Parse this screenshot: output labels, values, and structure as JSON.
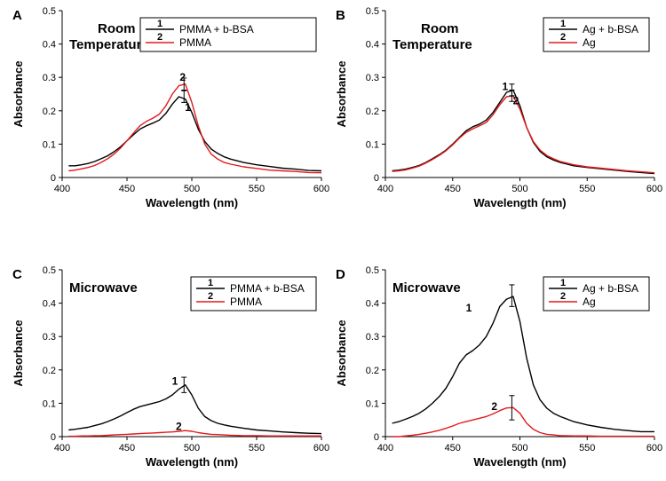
{
  "chart_data": [
    {
      "panel_label": "A",
      "type": "line",
      "title": "Room\nTemperature",
      "xlabel": "Wavelength (nm)",
      "ylabel": "Absorbance",
      "xlim": [
        400,
        600
      ],
      "ylim": [
        0,
        0.5
      ],
      "xticks": [
        400,
        450,
        500,
        550,
        600
      ],
      "yticks": [
        0,
        0.1,
        0.2,
        0.3,
        0.4,
        0.5
      ],
      "grid": false,
      "legend": {
        "placement": "top-right",
        "entries": [
          {
            "mark": "1",
            "text": "PMMA + b-BSA"
          },
          {
            "mark": "2",
            "text": "PMMA"
          }
        ]
      },
      "series": [
        {
          "name": "PMMA + b-BSA",
          "label": "1",
          "color": "#000000",
          "x": [
            405,
            410,
            415,
            420,
            425,
            430,
            435,
            440,
            445,
            450,
            455,
            460,
            465,
            470,
            475,
            480,
            485,
            490,
            495,
            500,
            505,
            510,
            515,
            520,
            525,
            530,
            540,
            550,
            560,
            570,
            580,
            590,
            600
          ],
          "y": [
            0.035,
            0.035,
            0.038,
            0.042,
            0.048,
            0.056,
            0.065,
            0.077,
            0.092,
            0.11,
            0.128,
            0.145,
            0.155,
            0.163,
            0.172,
            0.192,
            0.22,
            0.242,
            0.235,
            0.195,
            0.145,
            0.108,
            0.085,
            0.072,
            0.062,
            0.055,
            0.045,
            0.038,
            0.033,
            0.028,
            0.025,
            0.021,
            0.02
          ]
        },
        {
          "name": "PMMA",
          "label": "2",
          "color": "#e31a1c",
          "x": [
            405,
            410,
            415,
            420,
            425,
            430,
            435,
            440,
            445,
            450,
            455,
            460,
            465,
            470,
            475,
            480,
            485,
            490,
            495,
            500,
            505,
            510,
            515,
            520,
            525,
            530,
            540,
            550,
            560,
            570,
            580,
            590,
            600
          ],
          "y": [
            0.02,
            0.022,
            0.026,
            0.03,
            0.036,
            0.045,
            0.056,
            0.07,
            0.088,
            0.11,
            0.133,
            0.155,
            0.168,
            0.178,
            0.19,
            0.215,
            0.25,
            0.275,
            0.28,
            0.225,
            0.155,
            0.1,
            0.07,
            0.055,
            0.045,
            0.04,
            0.032,
            0.027,
            0.022,
            0.02,
            0.018,
            0.015,
            0.014
          ]
        }
      ],
      "annotations": [
        {
          "text": "2",
          "x": 493,
          "y": 0.29
        },
        {
          "text": "1",
          "x": 497,
          "y": 0.2
        }
      ],
      "error_bars": [
        {
          "x": 494,
          "low": 0.225,
          "high": 0.26
        },
        {
          "x": 494,
          "low": 0.262,
          "high": 0.298
        }
      ]
    },
    {
      "panel_label": "B",
      "type": "line",
      "title": "Room\nTemperature",
      "xlabel": "Wavelength (nm)",
      "ylabel": "Absorbance",
      "xlim": [
        400,
        600
      ],
      "ylim": [
        0,
        0.5
      ],
      "xticks": [
        400,
        450,
        500,
        550,
        600
      ],
      "yticks": [
        0,
        0.1,
        0.2,
        0.3,
        0.4,
        0.5
      ],
      "grid": false,
      "legend": {
        "placement": "top-right",
        "entries": [
          {
            "mark": "1",
            "text": "Ag + b-BSA"
          },
          {
            "mark": "2",
            "text": "Ag"
          }
        ]
      },
      "series": [
        {
          "name": "Ag + b-BSA",
          "label": "1",
          "color": "#000000",
          "x": [
            405,
            410,
            415,
            420,
            425,
            430,
            435,
            440,
            445,
            450,
            455,
            460,
            465,
            470,
            475,
            480,
            485,
            490,
            495,
            500,
            505,
            510,
            515,
            520,
            525,
            530,
            540,
            550,
            560,
            570,
            580,
            590,
            600
          ],
          "y": [
            0.02,
            0.022,
            0.025,
            0.03,
            0.036,
            0.045,
            0.056,
            0.068,
            0.082,
            0.1,
            0.12,
            0.14,
            0.152,
            0.16,
            0.172,
            0.195,
            0.225,
            0.255,
            0.262,
            0.215,
            0.15,
            0.105,
            0.078,
            0.062,
            0.052,
            0.045,
            0.035,
            0.03,
            0.026,
            0.022,
            0.018,
            0.015,
            0.012
          ]
        },
        {
          "name": "Ag",
          "label": "2",
          "color": "#e31a1c",
          "x": [
            405,
            410,
            415,
            420,
            425,
            430,
            435,
            440,
            445,
            450,
            455,
            460,
            465,
            470,
            475,
            480,
            485,
            490,
            495,
            500,
            505,
            510,
            515,
            520,
            525,
            530,
            540,
            550,
            560,
            570,
            580,
            590,
            600
          ],
          "y": [
            0.018,
            0.02,
            0.023,
            0.028,
            0.034,
            0.043,
            0.054,
            0.066,
            0.08,
            0.098,
            0.118,
            0.135,
            0.146,
            0.155,
            0.165,
            0.188,
            0.218,
            0.242,
            0.245,
            0.205,
            0.15,
            0.108,
            0.082,
            0.066,
            0.056,
            0.048,
            0.038,
            0.032,
            0.028,
            0.024,
            0.02,
            0.017,
            0.014
          ]
        }
      ],
      "annotations": [
        {
          "text": "1",
          "x": 489,
          "y": 0.262
        },
        {
          "text": "2",
          "x": 497,
          "y": 0.22
        }
      ],
      "error_bars": [
        {
          "x": 494,
          "low": 0.245,
          "high": 0.28
        },
        {
          "x": 494,
          "low": 0.228,
          "high": 0.262
        }
      ]
    },
    {
      "panel_label": "C",
      "type": "line",
      "title": "Microwave",
      "xlabel": "Wavelength (nm)",
      "ylabel": "Absorbance",
      "xlim": [
        400,
        600
      ],
      "ylim": [
        0,
        0.5
      ],
      "xticks": [
        400,
        450,
        500,
        550,
        600
      ],
      "yticks": [
        0,
        0.1,
        0.2,
        0.3,
        0.4,
        0.5
      ],
      "grid": false,
      "legend": {
        "placement": "top-right",
        "entries": [
          {
            "mark": "1",
            "text": "PMMA + b-BSA"
          },
          {
            "mark": "2",
            "text": "PMMA"
          }
        ]
      },
      "series": [
        {
          "name": "PMMA + b-BSA",
          "label": "1",
          "color": "#000000",
          "x": [
            405,
            410,
            415,
            420,
            425,
            430,
            435,
            440,
            445,
            450,
            455,
            460,
            465,
            470,
            475,
            480,
            485,
            490,
            495,
            500,
            505,
            510,
            515,
            520,
            525,
            530,
            540,
            550,
            560,
            570,
            580,
            590,
            600
          ],
          "y": [
            0.02,
            0.022,
            0.025,
            0.028,
            0.033,
            0.038,
            0.045,
            0.053,
            0.062,
            0.072,
            0.082,
            0.09,
            0.095,
            0.1,
            0.105,
            0.113,
            0.125,
            0.142,
            0.155,
            0.125,
            0.085,
            0.06,
            0.048,
            0.04,
            0.035,
            0.031,
            0.025,
            0.02,
            0.017,
            0.014,
            0.012,
            0.01,
            0.009
          ]
        },
        {
          "name": "PMMA",
          "label": "2",
          "color": "#e31a1c",
          "x": [
            405,
            410,
            415,
            420,
            425,
            430,
            435,
            440,
            445,
            450,
            455,
            460,
            465,
            470,
            475,
            480,
            485,
            490,
            495,
            500,
            505,
            510,
            515,
            520,
            525,
            530,
            540,
            550,
            560,
            570,
            580,
            590,
            600
          ],
          "y": [
            0.001,
            0.001,
            0.002,
            0.002,
            0.003,
            0.003,
            0.004,
            0.005,
            0.006,
            0.007,
            0.008,
            0.009,
            0.01,
            0.011,
            0.012,
            0.013,
            0.014,
            0.016,
            0.018,
            0.016,
            0.012,
            0.009,
            0.007,
            0.006,
            0.005,
            0.004,
            0.003,
            0.003,
            0.002,
            0.002,
            0.002,
            0.002,
            0.002
          ]
        }
      ],
      "annotations": [
        {
          "text": "1",
          "x": 487,
          "y": 0.155
        },
        {
          "text": "2",
          "x": 490,
          "y": 0.02
        }
      ],
      "error_bars": [
        {
          "x": 494,
          "low": 0.132,
          "high": 0.178
        }
      ]
    },
    {
      "panel_label": "D",
      "type": "line",
      "title": "Microwave",
      "xlabel": "Wavelength (nm)",
      "ylabel": "Absorbance",
      "xlim": [
        400,
        600
      ],
      "ylim": [
        0,
        0.5
      ],
      "xticks": [
        400,
        450,
        500,
        550,
        600
      ],
      "yticks": [
        0,
        0.1,
        0.2,
        0.3,
        0.4,
        0.5
      ],
      "grid": false,
      "legend": {
        "placement": "top-right",
        "entries": [
          {
            "mark": "1",
            "text": "Ag + b-BSA"
          },
          {
            "mark": "2",
            "text": "Ag"
          }
        ]
      },
      "series": [
        {
          "name": "Ag + b-BSA",
          "label": "1",
          "color": "#000000",
          "x": [
            405,
            410,
            415,
            420,
            425,
            430,
            435,
            440,
            445,
            450,
            455,
            460,
            465,
            470,
            475,
            480,
            485,
            490,
            495,
            500,
            505,
            510,
            515,
            520,
            525,
            530,
            540,
            550,
            560,
            570,
            580,
            590,
            600
          ],
          "y": [
            0.04,
            0.045,
            0.052,
            0.06,
            0.07,
            0.083,
            0.1,
            0.12,
            0.145,
            0.18,
            0.22,
            0.245,
            0.258,
            0.275,
            0.3,
            0.34,
            0.39,
            0.412,
            0.42,
            0.345,
            0.235,
            0.155,
            0.11,
            0.085,
            0.07,
            0.06,
            0.045,
            0.035,
            0.028,
            0.022,
            0.018,
            0.015,
            0.015
          ]
        },
        {
          "name": "Ag",
          "label": "2",
          "color": "#e31a1c",
          "x": [
            405,
            410,
            415,
            420,
            425,
            430,
            435,
            440,
            445,
            450,
            455,
            460,
            465,
            470,
            475,
            480,
            485,
            490,
            495,
            500,
            505,
            510,
            515,
            520,
            525,
            530,
            540,
            550,
            560,
            570,
            580,
            590,
            600
          ],
          "y": [
            0.0,
            0.0,
            0.002,
            0.004,
            0.007,
            0.01,
            0.014,
            0.019,
            0.025,
            0.032,
            0.04,
            0.045,
            0.05,
            0.055,
            0.06,
            0.068,
            0.078,
            0.086,
            0.087,
            0.07,
            0.04,
            0.022,
            0.012,
            0.007,
            0.005,
            0.003,
            0.002,
            0.002,
            0.001,
            0.001,
            0.001,
            0.001,
            0.001
          ]
        }
      ],
      "annotations": [
        {
          "text": "1",
          "x": 462,
          "y": 0.375
        },
        {
          "text": "2",
          "x": 481,
          "y": 0.08
        }
      ],
      "error_bars": [
        {
          "x": 494,
          "low": 0.39,
          "high": 0.455
        },
        {
          "x": 494,
          "low": 0.05,
          "high": 0.123
        }
      ]
    }
  ]
}
